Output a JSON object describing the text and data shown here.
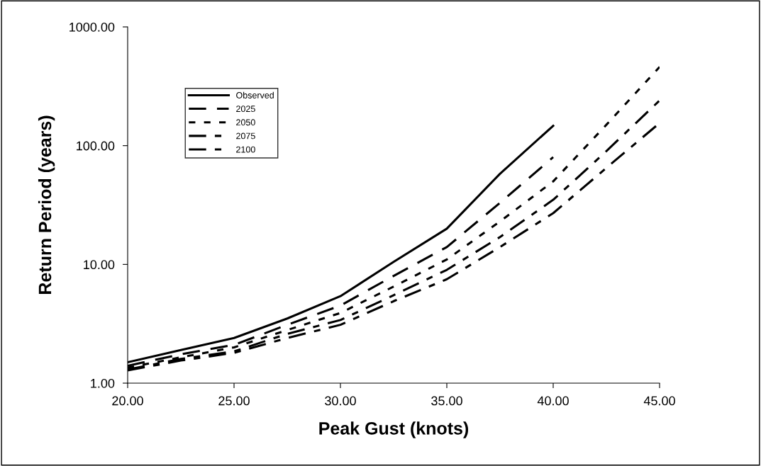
{
  "chart_data": {
    "type": "line",
    "xlabel": "Peak Gust (knots)",
    "ylabel": "Return Period (years)",
    "log": "y",
    "xlim": [
      20,
      45
    ],
    "xticks": [
      {
        "value": 20,
        "label": "20.00"
      },
      {
        "value": 25,
        "label": "25.00"
      },
      {
        "value": 30,
        "label": "30.00"
      },
      {
        "value": 35,
        "label": "35.00"
      },
      {
        "value": 40,
        "label": "40.00"
      },
      {
        "value": 45,
        "label": "45.00"
      }
    ],
    "ylim": [
      1,
      1000
    ],
    "yticks": [
      {
        "value": 1,
        "label": "1.00"
      },
      {
        "value": 10,
        "label": "10.00"
      },
      {
        "value": 100,
        "label": "100.00"
      },
      {
        "value": 1000,
        "label": "1000.00"
      }
    ],
    "grid": false,
    "legend": "top left",
    "marker": "none",
    "series": [
      {
        "name": "Observed",
        "color": "#000000",
        "line_style": "solid",
        "x": [
          20,
          22.5,
          25,
          27.5,
          30,
          32.5,
          35,
          37.5,
          40
        ],
        "values": [
          1.5,
          1.9,
          2.4,
          3.5,
          5.4,
          10.5,
          20,
          58,
          147
        ]
      },
      {
        "name": "2025",
        "color": "#000000",
        "line_style": "dashed",
        "x": [
          20,
          22.5,
          25,
          27.5,
          30,
          32.5,
          35,
          37.5,
          40
        ],
        "values": [
          1.4,
          1.75,
          2.1,
          3.1,
          4.5,
          8,
          14,
          33,
          80
        ]
      },
      {
        "name": "2050",
        "color": "#000000",
        "line_style": "dotted",
        "x": [
          20,
          22.5,
          25,
          27.5,
          30,
          32.5,
          35,
          37.5,
          40,
          42.5,
          45
        ],
        "values": [
          1.35,
          1.65,
          2.0,
          2.8,
          3.9,
          6.5,
          11,
          23,
          50,
          150,
          460
        ]
      },
      {
        "name": "2075",
        "color": "#000000",
        "line_style": "dashdot",
        "x": [
          20,
          22.5,
          25,
          27.5,
          30,
          32.5,
          35,
          37.5,
          40,
          42.5,
          45
        ],
        "values": [
          1.3,
          1.6,
          1.85,
          2.6,
          3.4,
          5.5,
          9,
          17,
          35,
          90,
          240
        ]
      },
      {
        "name": "2100",
        "color": "#000000",
        "line_style": "dashdot",
        "x": [
          20,
          22.5,
          25,
          27.5,
          30,
          32.5,
          35,
          37.5,
          40,
          42.5,
          45
        ],
        "values": [
          1.28,
          1.55,
          1.8,
          2.4,
          3.1,
          4.9,
          7.5,
          14,
          27,
          65,
          155
        ]
      }
    ]
  }
}
